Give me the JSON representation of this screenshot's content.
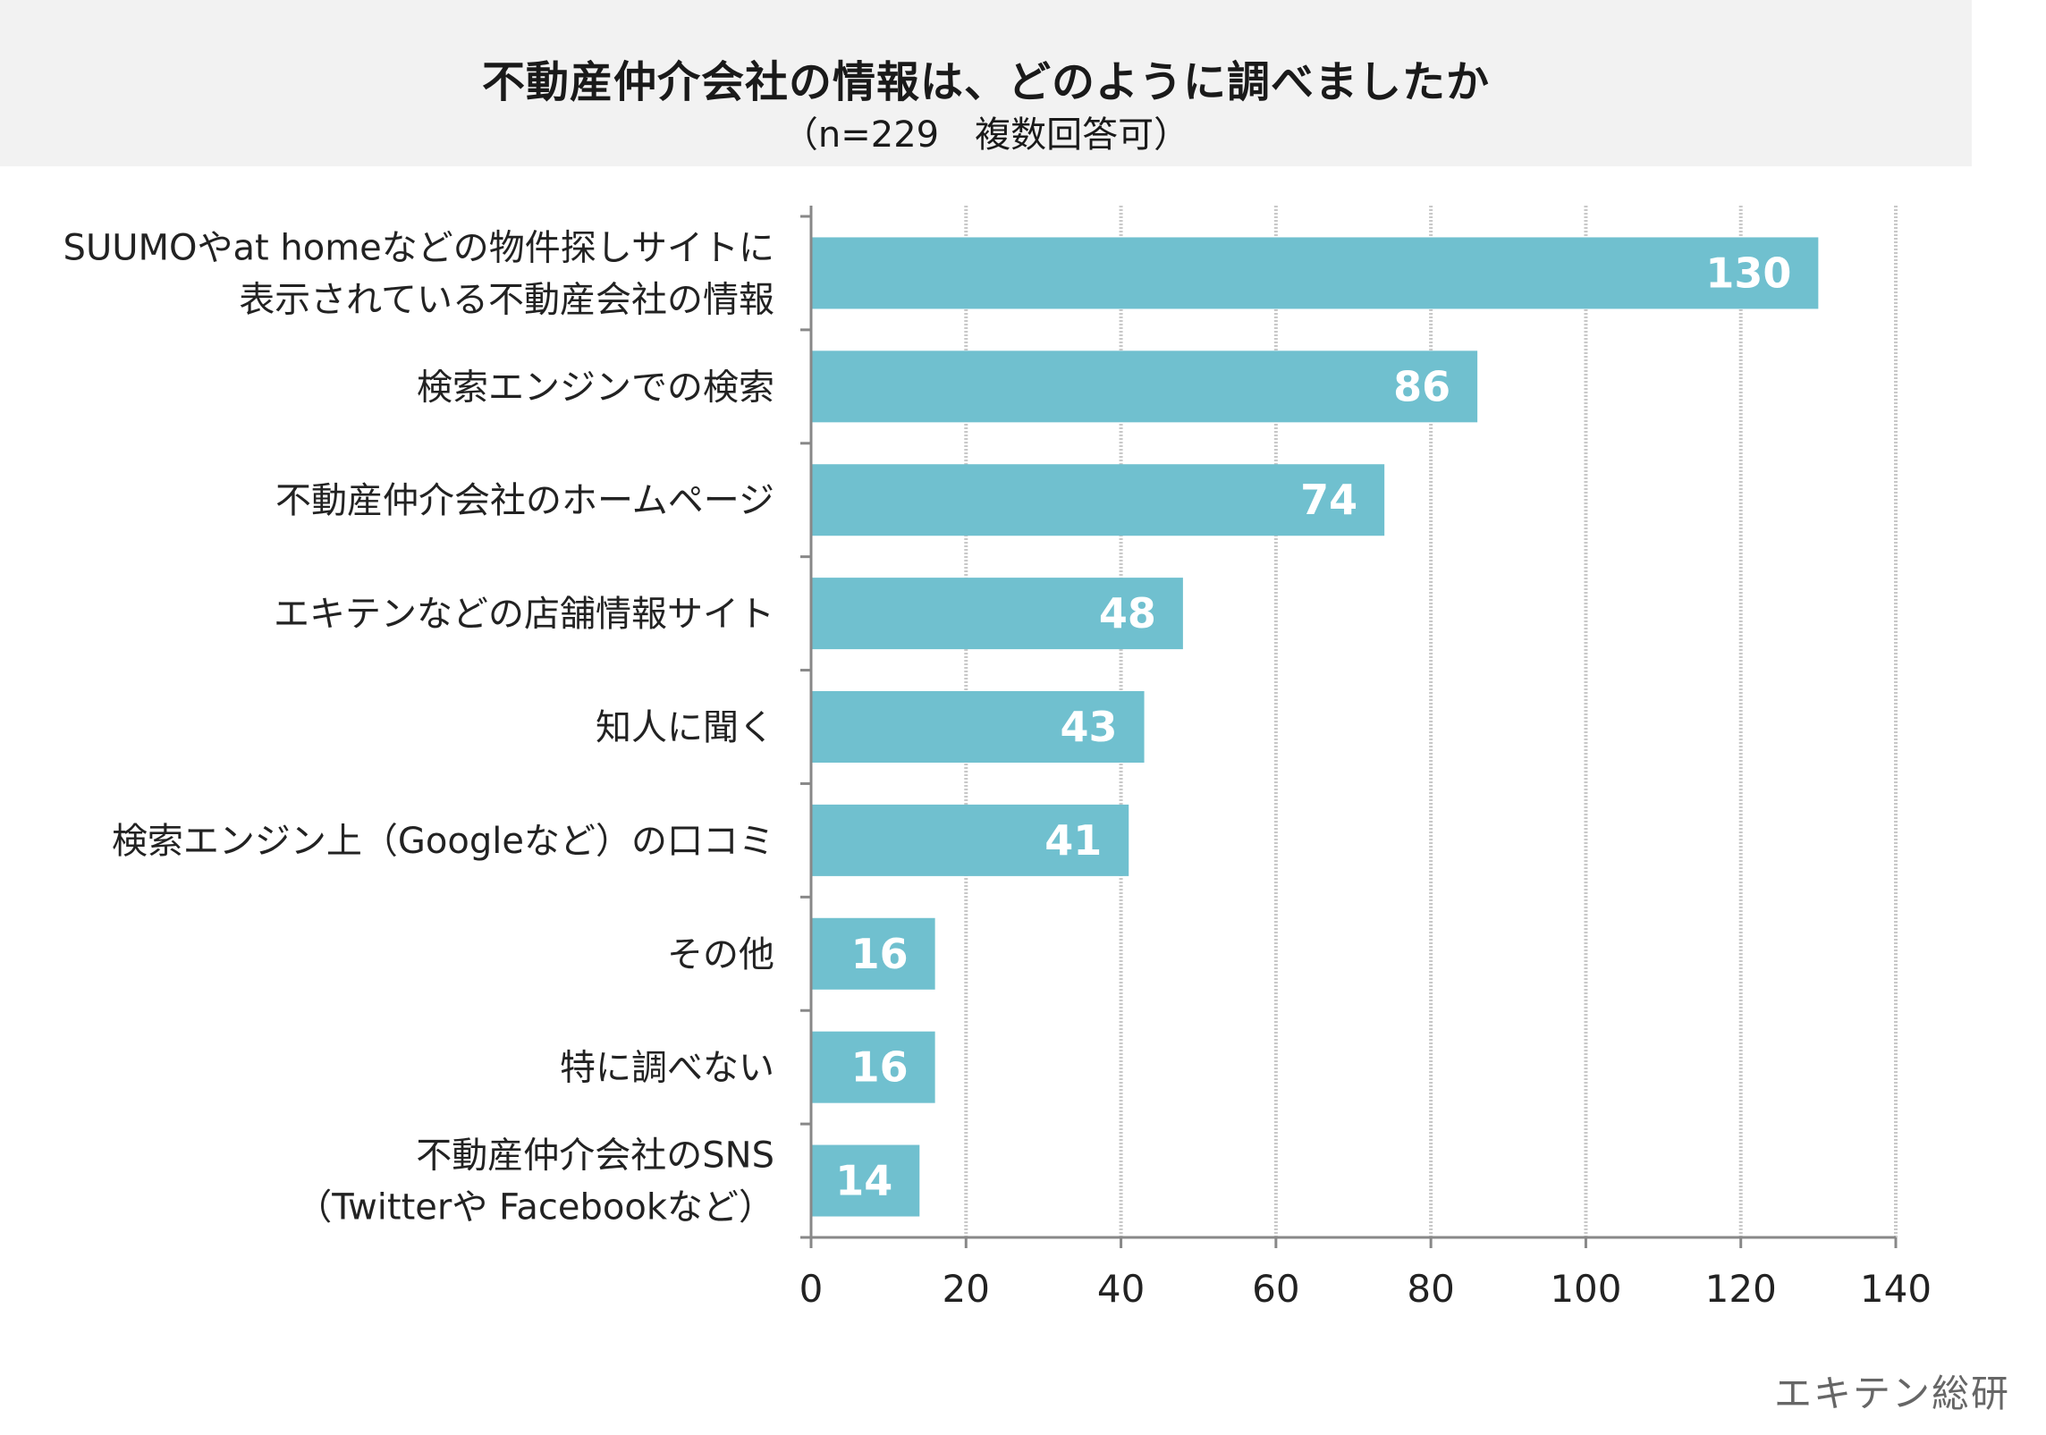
{
  "title": "不動産仲介会社の情報は、どのように調べましたか",
  "subtitle": "（n=229　複数回答可）",
  "credit": "エキテン総研",
  "colors": {
    "bar": "#70c0cf",
    "grid": "#c8c8c8",
    "axis": "#888888",
    "header_bg": "#f2f2f2"
  },
  "chart_data": {
    "type": "bar",
    "orientation": "horizontal",
    "categories": [
      [
        "SUUMOやat homeなどの物件探しサイトに",
        "表示されている不動産会社の情報"
      ],
      [
        "検索エンジンでの検索"
      ],
      [
        "不動産仲介会社のホームページ"
      ],
      [
        "エキテンなどの店舗情報サイト"
      ],
      [
        "知人に聞く"
      ],
      [
        "検索エンジン上（Googleなど）の口コミ"
      ],
      [
        "その他"
      ],
      [
        "特に調べない"
      ],
      [
        "不動産仲介会社のSNS",
        "（Twitterや Facebookなど）"
      ]
    ],
    "values": [
      130,
      86,
      74,
      48,
      43,
      41,
      16,
      16,
      14
    ],
    "xlim": [
      0,
      140
    ],
    "xticks": [
      0,
      20,
      40,
      60,
      80,
      100,
      120,
      140
    ],
    "grid": true,
    "data_labels": true
  }
}
